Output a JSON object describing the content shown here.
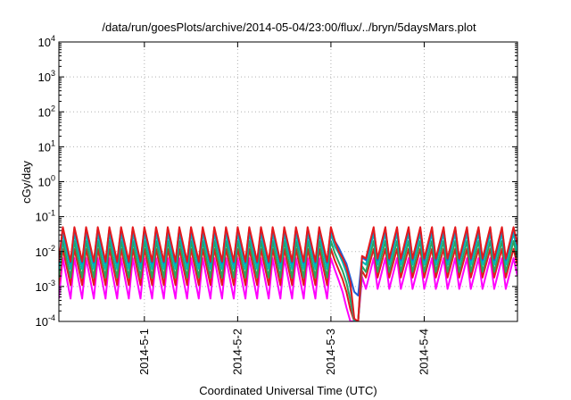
{
  "chart_data": {
    "type": "line",
    "title": "/data/run/goesPlots/archive/2014-05-04/23:00/flux/../bryn/5daysMars.plot",
    "xlabel": "Coordinated Universal Time (UTC)",
    "ylabel": "cGy/day",
    "y_scale": "log",
    "ylim": [
      0.0001,
      10000
    ],
    "xlim": [
      "2014-04-30 02:00",
      "2014-05-05 00:00"
    ],
    "grid": true,
    "legend": "none",
    "x_ticks": [
      {
        "label": "2014-5-1",
        "value": "2014-05-01 00:00"
      },
      {
        "label": "2014-5-2",
        "value": "2014-05-02 00:00"
      },
      {
        "label": "2014-5-3",
        "value": "2014-05-03 00:00"
      },
      {
        "label": "2014-5-4",
        "value": "2014-05-04 00:00"
      }
    ],
    "y_ticks": [
      {
        "base": "10",
        "exp": "-4",
        "value": 0.0001
      },
      {
        "base": "10",
        "exp": "-3",
        "value": 0.001
      },
      {
        "base": "10",
        "exp": "-2",
        "value": 0.01
      },
      {
        "base": "10",
        "exp": "-1",
        "value": 0.1
      },
      {
        "base": "10",
        "exp": "0",
        "value": 1
      },
      {
        "base": "10",
        "exp": "1",
        "value": 10
      },
      {
        "base": "10",
        "exp": "2",
        "value": 100
      },
      {
        "base": "10",
        "exp": "3",
        "value": 1000
      },
      {
        "base": "10",
        "exp": "4",
        "value": 10000
      }
    ],
    "x": [
      "2014-04-30 02:00",
      "2014-04-30 03:00",
      "2014-04-30 05:00",
      "2014-04-30 06:00",
      "2014-04-30 08:00",
      "2014-04-30 09:00",
      "2014-04-30 11:00",
      "2014-04-30 12:00",
      "2014-04-30 14:00",
      "2014-04-30 15:00",
      "2014-04-30 17:00",
      "2014-04-30 18:00",
      "2014-04-30 20:00",
      "2014-04-30 21:00",
      "2014-04-30 23:00",
      "2014-05-01 00:00",
      "2014-05-01 02:00",
      "2014-05-01 03:00",
      "2014-05-01 05:00",
      "2014-05-01 06:00",
      "2014-05-01 08:00",
      "2014-05-01 09:00",
      "2014-05-01 11:00",
      "2014-05-01 12:00",
      "2014-05-01 14:00",
      "2014-05-01 15:00",
      "2014-05-01 17:00",
      "2014-05-01 18:00",
      "2014-05-01 20:00",
      "2014-05-01 21:00",
      "2014-05-01 23:00",
      "2014-05-02 00:00",
      "2014-05-02 02:00",
      "2014-05-02 03:00",
      "2014-05-02 05:00",
      "2014-05-02 06:00",
      "2014-05-02 08:00",
      "2014-05-02 09:00",
      "2014-05-02 11:00",
      "2014-05-02 12:00",
      "2014-05-02 14:00",
      "2014-05-02 15:00",
      "2014-05-02 17:00",
      "2014-05-02 18:00",
      "2014-05-02 20:00",
      "2014-05-02 21:00",
      "2014-05-02 23:00",
      "2014-05-03 00:00",
      "2014-05-03 01:00",
      "2014-05-03 02:00",
      "2014-05-03 03:00",
      "2014-05-03 04:00",
      "2014-05-03 05:00",
      "2014-05-03 06:00",
      "2014-05-03 07:00",
      "2014-05-03 08:00",
      "2014-05-03 09:00",
      "2014-05-03 11:00",
      "2014-05-03 12:00",
      "2014-05-03 14:00",
      "2014-05-03 15:00",
      "2014-05-03 17:00",
      "2014-05-03 18:00",
      "2014-05-03 20:00",
      "2014-05-03 21:00",
      "2014-05-03 23:00",
      "2014-05-04 00:00",
      "2014-05-04 02:00",
      "2014-05-04 03:00",
      "2014-05-04 05:00",
      "2014-05-04 06:00",
      "2014-05-04 08:00",
      "2014-05-04 09:00",
      "2014-05-04 11:00",
      "2014-05-04 12:00",
      "2014-05-04 14:00",
      "2014-05-04 15:00",
      "2014-05-04 17:00",
      "2014-05-04 18:00",
      "2014-05-04 20:00",
      "2014-05-04 21:00",
      "2014-05-04 23:00",
      "2014-05-05 00:00"
    ],
    "series": [
      {
        "color": "#e41a1c",
        "values": [
          0.0052,
          0.05,
          0.0052,
          0.05,
          0.0052,
          0.05,
          0.0052,
          0.05,
          0.0052,
          0.05,
          0.0052,
          0.05,
          0.0052,
          0.05,
          0.0052,
          0.05,
          0.0052,
          0.05,
          0.0052,
          0.05,
          0.0052,
          0.05,
          0.0052,
          0.05,
          0.0052,
          0.05,
          0.0052,
          0.05,
          0.0052,
          0.05,
          0.0052,
          0.05,
          0.0052,
          0.05,
          0.0052,
          0.05,
          0.0052,
          0.05,
          0.0052,
          0.05,
          0.0052,
          0.05,
          0.0052,
          0.05,
          0.0052,
          0.05,
          0.0052,
          0.05,
          0.02,
          0.01,
          0.0065,
          0.0035,
          0.0013,
          0.00012,
          0.0001,
          0.0075,
          0.0063,
          0.05,
          0.0063,
          0.05,
          0.0063,
          0.05,
          0.0063,
          0.05,
          0.0063,
          0.05,
          0.0063,
          0.05,
          0.0063,
          0.05,
          0.0063,
          0.05,
          0.0063,
          0.05,
          0.0063,
          0.05,
          0.0063,
          0.05,
          0.0063,
          0.05,
          0.0063,
          0.05,
          0.016
        ]
      },
      {
        "color": "#1f5fd6",
        "values": [
          0.0048,
          0.046,
          0.0048,
          0.046,
          0.0048,
          0.046,
          0.0048,
          0.046,
          0.0048,
          0.046,
          0.0048,
          0.046,
          0.0048,
          0.046,
          0.0048,
          0.046,
          0.0048,
          0.046,
          0.0048,
          0.046,
          0.0048,
          0.046,
          0.0048,
          0.046,
          0.0048,
          0.046,
          0.0048,
          0.046,
          0.0048,
          0.046,
          0.0048,
          0.046,
          0.0048,
          0.046,
          0.0048,
          0.046,
          0.0048,
          0.046,
          0.0048,
          0.046,
          0.0048,
          0.046,
          0.0048,
          0.046,
          0.0048,
          0.046,
          0.0048,
          0.046,
          0.02,
          0.013,
          0.0075,
          0.0045,
          0.0018,
          0.0007,
          0.00055,
          0.0068,
          0.0057,
          0.046,
          0.0057,
          0.046,
          0.0057,
          0.046,
          0.0057,
          0.046,
          0.0057,
          0.046,
          0.0057,
          0.046,
          0.0057,
          0.046,
          0.0057,
          0.046,
          0.0057,
          0.046,
          0.0057,
          0.046,
          0.0057,
          0.046,
          0.0057,
          0.046,
          0.0057,
          0.046,
          0.015
        ]
      },
      {
        "color": "#00b5b5",
        "values": [
          0.0032,
          0.033,
          0.0032,
          0.033,
          0.0032,
          0.033,
          0.0032,
          0.033,
          0.0032,
          0.033,
          0.0032,
          0.033,
          0.0032,
          0.033,
          0.0032,
          0.033,
          0.0032,
          0.033,
          0.0032,
          0.033,
          0.0032,
          0.033,
          0.0032,
          0.033,
          0.0032,
          0.033,
          0.0032,
          0.033,
          0.0032,
          0.033,
          0.0032,
          0.033,
          0.0032,
          0.033,
          0.0032,
          0.033,
          0.0032,
          0.033,
          0.0032,
          0.033,
          0.0032,
          0.033,
          0.0032,
          0.033,
          0.0032,
          0.033,
          0.0032,
          0.033,
          0.014,
          0.009,
          0.005,
          0.0025,
          0.0009,
          0.0001,
          0.0001,
          0.0052,
          0.0042,
          0.033,
          0.0042,
          0.033,
          0.0042,
          0.033,
          0.0042,
          0.033,
          0.0042,
          0.033,
          0.0042,
          0.033,
          0.0042,
          0.033,
          0.0042,
          0.033,
          0.0042,
          0.033,
          0.0042,
          0.033,
          0.0042,
          0.033,
          0.0042,
          0.033,
          0.0042,
          0.033,
          0.01
        ]
      },
      {
        "color": "#2ca25f",
        "values": [
          0.0018,
          0.02,
          0.0018,
          0.02,
          0.0018,
          0.02,
          0.0018,
          0.02,
          0.0018,
          0.02,
          0.0018,
          0.02,
          0.0018,
          0.02,
          0.0018,
          0.02,
          0.0018,
          0.02,
          0.0018,
          0.02,
          0.0018,
          0.02,
          0.0018,
          0.02,
          0.0018,
          0.02,
          0.0018,
          0.02,
          0.0018,
          0.02,
          0.0018,
          0.02,
          0.0018,
          0.02,
          0.0018,
          0.02,
          0.0018,
          0.02,
          0.0018,
          0.02,
          0.0018,
          0.02,
          0.0018,
          0.02,
          0.0018,
          0.02,
          0.0018,
          0.02,
          0.009,
          0.005,
          0.0028,
          0.0013,
          0.0004,
          0.0001,
          0.0001,
          0.0038,
          0.0026,
          0.02,
          0.0026,
          0.02,
          0.0026,
          0.02,
          0.0026,
          0.02,
          0.0026,
          0.02,
          0.0026,
          0.02,
          0.0026,
          0.02,
          0.0026,
          0.02,
          0.0026,
          0.02,
          0.0026,
          0.02,
          0.0026,
          0.02,
          0.0026,
          0.02,
          0.0026,
          0.02,
          0.0065
        ]
      },
      {
        "color": "#e41a1c",
        "values": [
          0.0011,
          0.012,
          0.0011,
          0.012,
          0.0011,
          0.012,
          0.0011,
          0.012,
          0.0011,
          0.012,
          0.0011,
          0.012,
          0.0011,
          0.012,
          0.0011,
          0.012,
          0.0011,
          0.012,
          0.0011,
          0.012,
          0.0011,
          0.012,
          0.0011,
          0.012,
          0.0011,
          0.012,
          0.0011,
          0.012,
          0.0011,
          0.012,
          0.0011,
          0.012,
          0.0011,
          0.012,
          0.0011,
          0.012,
          0.0011,
          0.012,
          0.0011,
          0.012,
          0.0011,
          0.012,
          0.0011,
          0.012,
          0.0011,
          0.012,
          0.0011,
          0.012,
          0.0055,
          0.003,
          0.0016,
          0.0007,
          0.00022,
          0.0001,
          0.0001,
          0.0028,
          0.0018,
          0.012,
          0.0018,
          0.012,
          0.0018,
          0.012,
          0.0018,
          0.012,
          0.0018,
          0.012,
          0.0018,
          0.012,
          0.0018,
          0.012,
          0.0018,
          0.012,
          0.0018,
          0.012,
          0.0018,
          0.012,
          0.0018,
          0.012,
          0.0018,
          0.012,
          0.0018,
          0.012,
          0.004
        ]
      },
      {
        "color": "#ff00ff",
        "values": [
          0.00045,
          0.0065,
          0.00045,
          0.0065,
          0.00045,
          0.0065,
          0.00045,
          0.0065,
          0.00045,
          0.0065,
          0.00045,
          0.0065,
          0.00045,
          0.0065,
          0.00045,
          0.0065,
          0.00045,
          0.0065,
          0.00045,
          0.0065,
          0.00045,
          0.0065,
          0.00045,
          0.0065,
          0.00045,
          0.0065,
          0.00045,
          0.0065,
          0.00045,
          0.0065,
          0.00045,
          0.0065,
          0.00045,
          0.0065,
          0.00045,
          0.0065,
          0.00045,
          0.0065,
          0.00045,
          0.0065,
          0.00045,
          0.0065,
          0.00045,
          0.0065,
          0.00045,
          0.0065,
          0.00045,
          0.0065,
          0.003,
          0.0015,
          0.0007,
          0.00025,
          0.0001,
          0.0001,
          0.0001,
          0.0019,
          0.00085,
          0.0065,
          0.00085,
          0.0065,
          0.00085,
          0.0065,
          0.00085,
          0.0065,
          0.00085,
          0.0065,
          0.00085,
          0.0065,
          0.00085,
          0.0065,
          0.00085,
          0.0065,
          0.00085,
          0.0065,
          0.00085,
          0.0065,
          0.00085,
          0.0065,
          0.00085,
          0.0065,
          0.00085,
          0.0065,
          0.002
        ]
      }
    ]
  }
}
